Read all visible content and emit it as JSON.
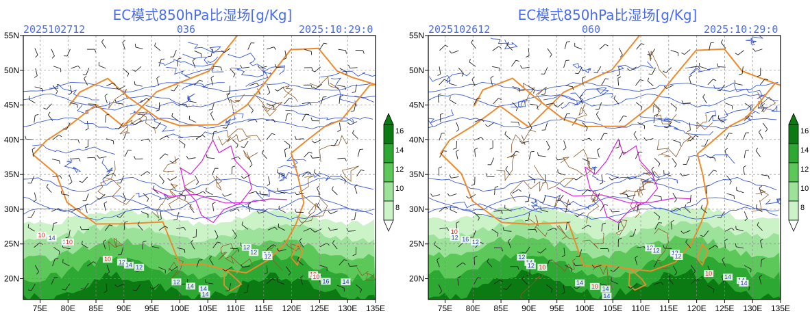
{
  "panels": [
    {
      "title": "EC模式850hPa比湿场[g/Kg]",
      "init_time": "2025102712",
      "forecast_hour": "036",
      "valid_time": "2025:10:29:0"
    },
    {
      "title": "EC模式850hPa比湿场[g/Kg]",
      "init_time": "2025102612",
      "forecast_hour": "060",
      "valid_time": "2025:10:29:0"
    }
  ],
  "axes": {
    "lat_labels": [
      "55N",
      "50N",
      "45N",
      "40N",
      "35N",
      "30N",
      "25N",
      "20N"
    ],
    "lon_labels": [
      "75E",
      "80E",
      "85E",
      "90E",
      "95E",
      "100E",
      "105E",
      "110E",
      "115E",
      "120E",
      "125E",
      "130E",
      "135E"
    ],
    "lat_range": [
      17,
      55
    ],
    "lon_range": [
      72,
      135
    ]
  },
  "colorbar": {
    "levels": [
      "16",
      "14",
      "12",
      "10",
      "8"
    ],
    "colors": [
      "#0b7a12",
      "#2da832",
      "#5cc85a",
      "#9ce29a",
      "#ccf3c8"
    ]
  },
  "contour_labels": {
    "left": [
      "10",
      "10",
      "12",
      "12",
      "10",
      "14",
      "12",
      "14",
      "12",
      "10",
      "12",
      "14",
      "14",
      "14",
      "16",
      "10",
      "12",
      "14",
      "12",
      "14"
    ],
    "right": [
      "10",
      "12",
      "14",
      "12",
      "10",
      "12",
      "14",
      "10",
      "12",
      "14",
      "16",
      "12",
      "14",
      "12",
      "14",
      "12",
      "10",
      "14",
      "12",
      "14"
    ]
  }
}
